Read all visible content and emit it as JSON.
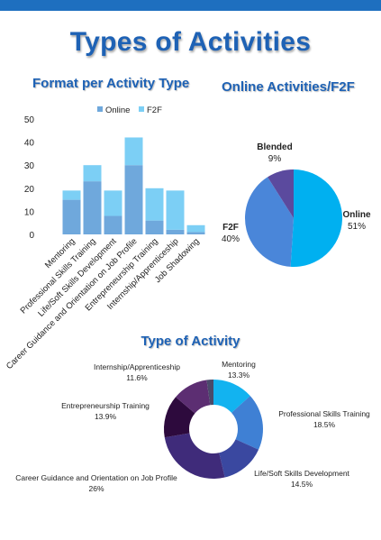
{
  "page": {
    "title": "Types of Activities"
  },
  "colors": {
    "title_blue": "#1e62b5",
    "online": "#6fa8dc",
    "f2f": "#7ccff5",
    "pie_online": "#00b0f0",
    "pie_f2f": "#4a86d9",
    "pie_blended": "#5b4a9e"
  },
  "chart_data": [
    {
      "type": "bar",
      "stacked": true,
      "title": "Format per Activity Type",
      "categories": [
        "Mentoring",
        "Professional Skills Training",
        "Life/Soft Skills Development",
        "Career Guidance and Orientation on Job Profile",
        "Entrepreneurship Training",
        "Internship/Apprenticeship",
        "Job Shadowing"
      ],
      "series": [
        {
          "name": "Online",
          "values": [
            15,
            23,
            8,
            30,
            6,
            2,
            1
          ]
        },
        {
          "name": "F2F",
          "values": [
            4,
            7,
            11,
            12,
            14,
            17,
            3
          ]
        }
      ],
      "ylim": [
        0,
        50
      ],
      "yticks": [
        0,
        10,
        20,
        30,
        40,
        50
      ],
      "legend": "top-center",
      "grid": false
    },
    {
      "type": "pie",
      "title": "Online Activities/F2F",
      "slices": [
        {
          "label": "Online",
          "pct_label": "51%",
          "value": 51
        },
        {
          "label": "F2F",
          "pct_label": "40%",
          "value": 40
        },
        {
          "label": "Blended",
          "pct_label": "9%",
          "value": 9
        }
      ]
    },
    {
      "type": "pie",
      "donut": true,
      "title": "Type of Activity",
      "slices": [
        {
          "label": "Mentoring",
          "pct_label": "13.3%",
          "value": 13.3,
          "color": "#12b3f0"
        },
        {
          "label": "Professional Skills Training",
          "pct_label": "18.5%",
          "value": 18.5,
          "color": "#3f80d4"
        },
        {
          "label": "Life/Soft Skills Development",
          "pct_label": "14.5%",
          "value": 14.5,
          "color": "#3a48a0"
        },
        {
          "label": "Career Guidance and Orientation on Job Profile",
          "pct_label": "26%",
          "value": 26,
          "color": "#3f2b7a"
        },
        {
          "label": "Entrepreneurship Training",
          "pct_label": "13.9%",
          "value": 13.9,
          "color": "#2d0a3d"
        },
        {
          "label": "Internship/Apprenticeship",
          "pct_label": "11.6%",
          "value": 11.6,
          "color": "#5c2e72"
        },
        {
          "label": "",
          "pct_label": "",
          "value": 2.2,
          "color": "#4a4a6a"
        }
      ]
    }
  ]
}
